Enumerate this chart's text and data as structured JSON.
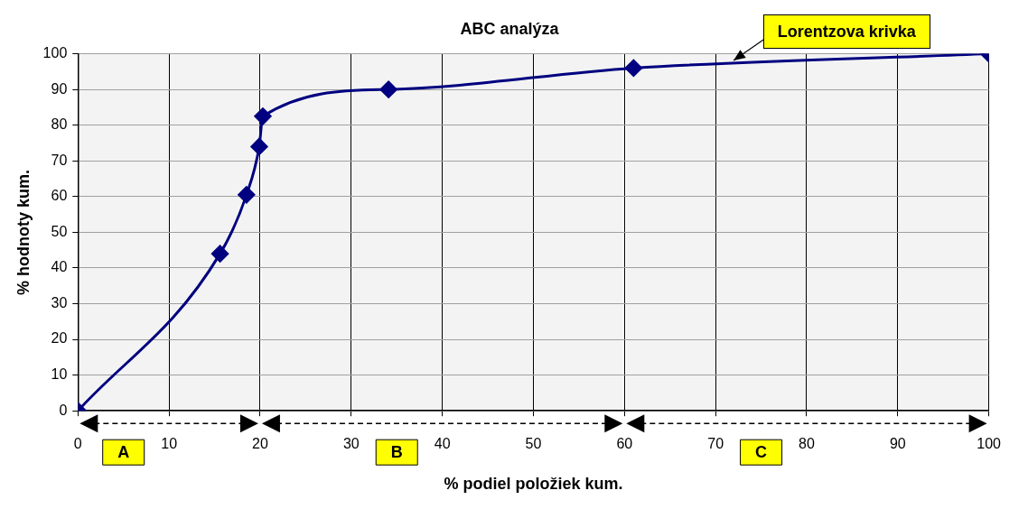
{
  "chart_data": {
    "type": "line",
    "title": "ABC analýza",
    "xlabel": "% podiel položiek kum.",
    "ylabel": "% hodnoty kum.",
    "x": [
      0,
      15.6,
      18.5,
      19.9,
      20.3,
      34.1,
      61,
      100
    ],
    "series": [
      {
        "name": "Lorentzova krivka",
        "color": "#000080",
        "values": [
          0,
          44,
          60.5,
          74,
          82.5,
          90,
          96,
          100
        ]
      }
    ],
    "xlim": [
      0,
      100
    ],
    "xticks": [
      0,
      10,
      20,
      30,
      40,
      50,
      60,
      70,
      80,
      90,
      100
    ],
    "ylim": [
      0,
      100
    ],
    "yticks": [
      0,
      10,
      20,
      30,
      40,
      50,
      60,
      70,
      80,
      90,
      100
    ],
    "bands": [
      {
        "axis": "x",
        "from": 0,
        "to": 20,
        "label": "A",
        "color": "#f3f3f3"
      },
      {
        "axis": "x",
        "from": 20,
        "to": 60,
        "label": "B",
        "color": "#f3f3f3"
      },
      {
        "axis": "x",
        "from": 60,
        "to": 100,
        "label": "C",
        "color": "#f3f3f3"
      }
    ],
    "grid": true,
    "marker": "diamond",
    "line_style": "solid",
    "legend": false
  }
}
